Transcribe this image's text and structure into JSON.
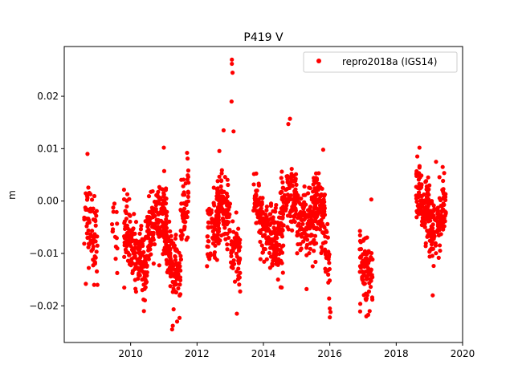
{
  "chart_data": {
    "type": "scatter",
    "title": "P419 V",
    "xlabel": "",
    "ylabel": "m",
    "xlim": [
      2008.0,
      2020.0
    ],
    "ylim": [
      -0.027,
      0.0295
    ],
    "xticks": [
      2010,
      2012,
      2014,
      2016,
      2018,
      2020
    ],
    "xtick_labels": [
      "2010",
      "2012",
      "2014",
      "2016",
      "2018",
      "2020"
    ],
    "yticks": [
      -0.02,
      -0.01,
      0.0,
      0.01,
      0.02
    ],
    "ytick_labels": [
      "−0.02",
      "−0.01",
      "0.00",
      "0.01",
      "0.02"
    ],
    "legend": {
      "placement": "top-right",
      "label": "repro2018a (IGS14)"
    },
    "grid": false,
    "marker_color": "#ff0000",
    "series": [
      {
        "name": "repro2018a (IGS14)",
        "clusters": [
          {
            "x_start": 2008.6,
            "x_end": 2009.0,
            "center_start": -0.002,
            "center_end": -0.007,
            "spread": 0.005,
            "count": 70
          },
          {
            "x_start": 2009.4,
            "x_end": 2009.6,
            "center_start": -0.005,
            "center_end": -0.007,
            "spread": 0.004,
            "count": 15
          },
          {
            "x_start": 2009.8,
            "x_end": 2010.5,
            "center_start": -0.006,
            "center_end": -0.013,
            "spread": 0.004,
            "count": 180
          },
          {
            "x_start": 2010.5,
            "x_end": 2011.1,
            "center_start": -0.006,
            "center_end": -0.002,
            "spread": 0.004,
            "count": 150
          },
          {
            "x_start": 2011.0,
            "x_end": 2011.5,
            "center_start": -0.008,
            "center_end": -0.015,
            "spread": 0.004,
            "count": 130
          },
          {
            "x_start": 2011.5,
            "x_end": 2011.75,
            "center_start": -0.006,
            "center_end": 0.002,
            "spread": 0.004,
            "count": 60
          },
          {
            "x_start": 2012.3,
            "x_end": 2012.7,
            "center_start": -0.007,
            "center_end": -0.003,
            "spread": 0.004,
            "count": 90
          },
          {
            "x_start": 2012.6,
            "x_end": 2013.0,
            "center_start": 0.001,
            "center_end": -0.004,
            "spread": 0.004,
            "count": 100
          },
          {
            "x_start": 2013.0,
            "x_end": 2013.3,
            "center_start": -0.008,
            "center_end": -0.011,
            "spread": 0.004,
            "count": 60
          },
          {
            "x_start": 2013.7,
            "x_end": 2014.0,
            "center_start": 0.001,
            "center_end": -0.004,
            "spread": 0.004,
            "count": 70
          },
          {
            "x_start": 2014.0,
            "x_end": 2014.6,
            "center_start": -0.006,
            "center_end": -0.009,
            "spread": 0.004,
            "count": 140
          },
          {
            "x_start": 2014.5,
            "x_end": 2015.0,
            "center_start": -0.001,
            "center_end": 0.001,
            "spread": 0.004,
            "count": 110
          },
          {
            "x_start": 2015.0,
            "x_end": 2015.6,
            "center_start": -0.003,
            "center_end": -0.005,
            "spread": 0.004,
            "count": 130
          },
          {
            "x_start": 2015.5,
            "x_end": 2015.85,
            "center_start": 0.0,
            "center_end": -0.003,
            "spread": 0.004,
            "count": 90
          },
          {
            "x_start": 2015.85,
            "x_end": 2016.0,
            "center_start": -0.008,
            "center_end": -0.013,
            "spread": 0.004,
            "count": 25
          },
          {
            "x_start": 2016.9,
            "x_end": 2017.3,
            "center_start": -0.011,
            "center_end": -0.014,
            "spread": 0.004,
            "count": 90
          },
          {
            "x_start": 2018.6,
            "x_end": 2019.0,
            "center_start": 0.002,
            "center_end": -0.003,
            "spread": 0.004,
            "count": 120
          },
          {
            "x_start": 2019.0,
            "x_end": 2019.5,
            "center_start": -0.006,
            "center_end": -0.002,
            "spread": 0.004,
            "count": 120
          }
        ],
        "outliers": [
          {
            "x": 2013.05,
            "y": 0.027
          },
          {
            "x": 2013.05,
            "y": 0.0262
          },
          {
            "x": 2013.07,
            "y": 0.0245
          },
          {
            "x": 2013.04,
            "y": 0.019
          },
          {
            "x": 2012.8,
            "y": 0.0135
          },
          {
            "x": 2013.1,
            "y": 0.0133
          },
          {
            "x": 2014.8,
            "y": 0.0157
          },
          {
            "x": 2014.75,
            "y": 0.0147
          },
          {
            "x": 2011.0,
            "y": 0.0102
          },
          {
            "x": 2018.7,
            "y": 0.0102
          },
          {
            "x": 2015.8,
            "y": 0.0098
          },
          {
            "x": 2008.7,
            "y": 0.009
          },
          {
            "x": 2008.9,
            "y": -0.016
          },
          {
            "x": 2009.0,
            "y": -0.016
          },
          {
            "x": 2008.65,
            "y": -0.0158
          },
          {
            "x": 2016.0,
            "y": -0.0205
          },
          {
            "x": 2016.0,
            "y": -0.0222
          },
          {
            "x": 2016.02,
            "y": -0.0212
          },
          {
            "x": 2011.25,
            "y": -0.0245
          },
          {
            "x": 2011.27,
            "y": -0.0238
          },
          {
            "x": 2011.4,
            "y": -0.023
          },
          {
            "x": 2013.2,
            "y": -0.0215
          },
          {
            "x": 2010.4,
            "y": -0.021
          },
          {
            "x": 2017.1,
            "y": -0.022
          },
          {
            "x": 2017.2,
            "y": -0.021
          },
          {
            "x": 2017.25,
            "y": 0.0003
          },
          {
            "x": 2019.1,
            "y": -0.018
          },
          {
            "x": 2009.9,
            "y": 0.0013
          },
          {
            "x": 2011.7,
            "y": 0.0092
          },
          {
            "x": 2014.55,
            "y": -0.0165
          },
          {
            "x": 2015.3,
            "y": -0.0168
          },
          {
            "x": 2019.2,
            "y": 0.0075
          },
          {
            "x": 2019.4,
            "y": 0.0065
          }
        ]
      }
    ]
  }
}
